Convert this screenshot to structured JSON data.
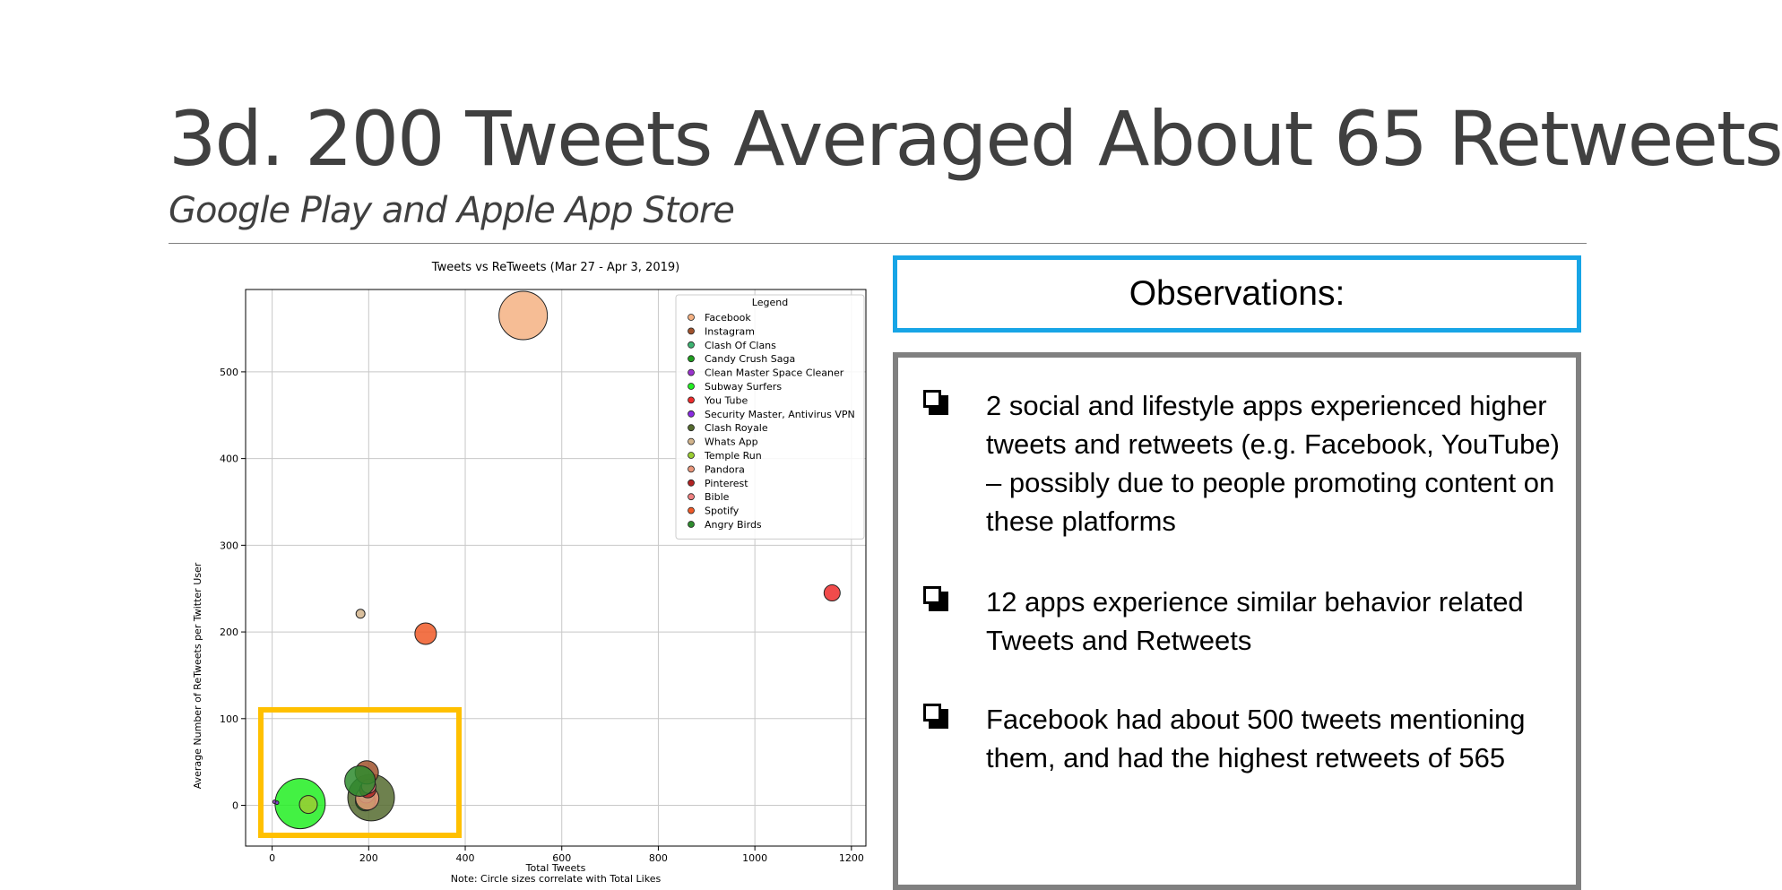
{
  "slide": {
    "title": "3d. 200 Tweets Averaged About 65 Retweets",
    "subtitle": "Google Play and Apple App Store"
  },
  "observations": {
    "header": "Observations:",
    "items": [
      "2 social and lifestyle apps experienced higher tweets and retweets (e.g. Facebook, YouTube) – possibly due to people promoting content on these platforms",
      "12 apps experience similar behavior related Tweets and Retweets",
      "Facebook had about 500 tweets mentioning them, and had the highest retweets of 565"
    ]
  },
  "highlight_color": "#ffc000",
  "chart_data": {
    "type": "scatter",
    "title": "Tweets vs ReTweets (Mar 27 - Apr 3, 2019)",
    "xlabel": "Total Tweets",
    "ylabel": "Average Number of ReTweets per Twitter User",
    "note": "Note: Circle sizes correlate with Total Likes",
    "legend_title": "Legend",
    "legend_position": "top-right",
    "grid": true,
    "xlim": [
      -55,
      1230
    ],
    "ylim": [
      -47,
      595
    ],
    "xticks": [
      0,
      200,
      400,
      600,
      800,
      1000,
      1200
    ],
    "yticks": [
      0,
      100,
      200,
      300,
      400,
      500
    ],
    "series": [
      {
        "name": "Facebook",
        "color": "#f4b183",
        "points": [
          {
            "x": 520,
            "y": 565,
            "r": 27
          }
        ]
      },
      {
        "name": "Instagram",
        "color": "#a0522d",
        "points": [
          {
            "x": 196,
            "y": 38,
            "r": 13
          }
        ]
      },
      {
        "name": "Clash Of Clans",
        "color": "#3cb371",
        "points": [
          {
            "x": 195,
            "y": 12,
            "r": 9
          }
        ]
      },
      {
        "name": "Candy Crush Saga",
        "color": "#1e9e1e",
        "points": [
          {
            "x": 193,
            "y": 5,
            "r": 11
          }
        ]
      },
      {
        "name": "Clean Master Space Cleaner",
        "color": "#9932cc",
        "points": [
          {
            "x": 5,
            "y": 4,
            "r": 2
          }
        ]
      },
      {
        "name": "Subway Surfers",
        "color": "#22ee22",
        "points": [
          {
            "x": 58,
            "y": 2,
            "r": 28
          }
        ]
      },
      {
        "name": "You Tube",
        "color": "#ee2b2b",
        "points": [
          {
            "x": 1160,
            "y": 245,
            "r": 9
          }
        ]
      },
      {
        "name": "Security Master, Antivirus VPN",
        "color": "#8a2be2",
        "points": [
          {
            "x": 10,
            "y": 3,
            "r": 2
          }
        ]
      },
      {
        "name": "Clash Royale",
        "color": "#556b2f",
        "points": [
          {
            "x": 205,
            "y": 9,
            "r": 26
          }
        ]
      },
      {
        "name": "Whats App",
        "color": "#d2b48c",
        "points": [
          {
            "x": 183,
            "y": 221,
            "r": 5
          }
        ]
      },
      {
        "name": "Temple Run",
        "color": "#9acd32",
        "points": [
          {
            "x": 75,
            "y": 1,
            "r": 10
          }
        ]
      },
      {
        "name": "Pandora",
        "color": "#e9967a",
        "points": [
          {
            "x": 197,
            "y": 8,
            "r": 13
          }
        ]
      },
      {
        "name": "Pinterest",
        "color": "#b22222",
        "points": [
          {
            "x": 198,
            "y": 18,
            "r": 9
          }
        ]
      },
      {
        "name": "Bible",
        "color": "#f08080",
        "points": [
          {
            "x": 200,
            "y": 22,
            "r": 8
          }
        ]
      },
      {
        "name": "Spotify",
        "color": "#f05a28",
        "points": [
          {
            "x": 318,
            "y": 198,
            "r": 12
          }
        ]
      },
      {
        "name": "Angry Birds",
        "color": "#2e8b2e",
        "points": [
          {
            "x": 182,
            "y": 28,
            "r": 17
          }
        ]
      }
    ]
  }
}
